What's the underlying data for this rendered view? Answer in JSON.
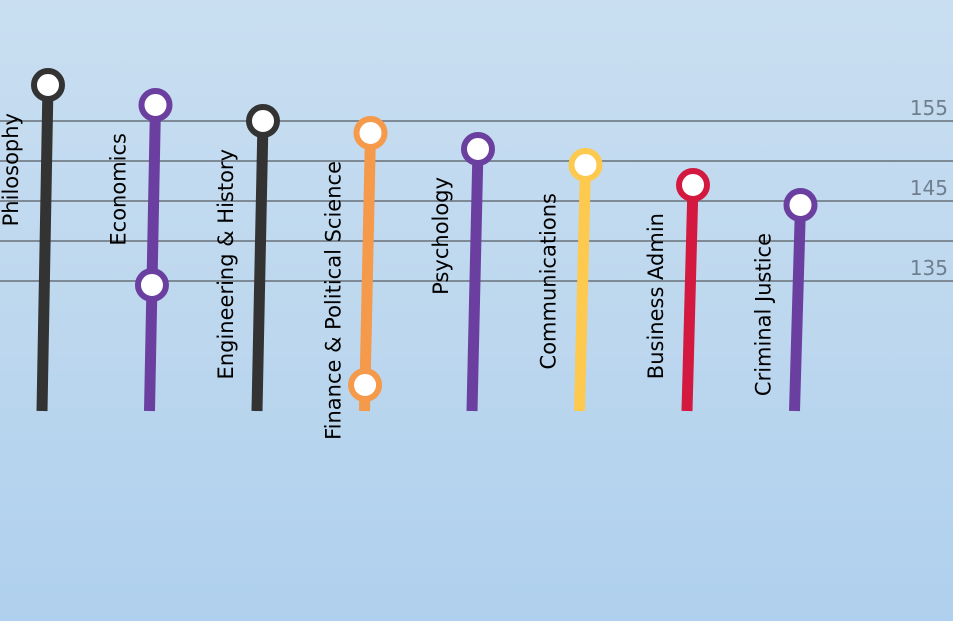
{
  "chart_data": {
    "type": "line",
    "ylim": [
      120,
      160
    ],
    "yticks": [
      135,
      140,
      145,
      150,
      155
    ],
    "ytick_labels": [
      "135",
      "145",
      "155"
    ],
    "grid": true,
    "series": [
      {
        "category": "Philosophy",
        "high": 159.5,
        "low": 120,
        "color": "#333333"
      },
      {
        "category": "Economics",
        "high": 157,
        "low": 134.5,
        "color": "#6b3fa0"
      },
      {
        "category": "Engineering & History",
        "high": 155,
        "low": 120,
        "color": "#333333"
      },
      {
        "category": "Finance & Political Science",
        "high": 153.5,
        "low": 122,
        "color": "#f5994a"
      },
      {
        "category": "Psychology",
        "high": 151.5,
        "low": 120,
        "color": "#6b3fa0"
      },
      {
        "category": "Communications",
        "high": 149.5,
        "low": 120,
        "color": "#fdc94e"
      },
      {
        "category": "Business Admin",
        "high": 147,
        "low": 120,
        "color": "#d3193f"
      },
      {
        "category": "Criminal Justice",
        "high": 144.5,
        "low": 120,
        "color": "#6b3fa0"
      }
    ]
  }
}
